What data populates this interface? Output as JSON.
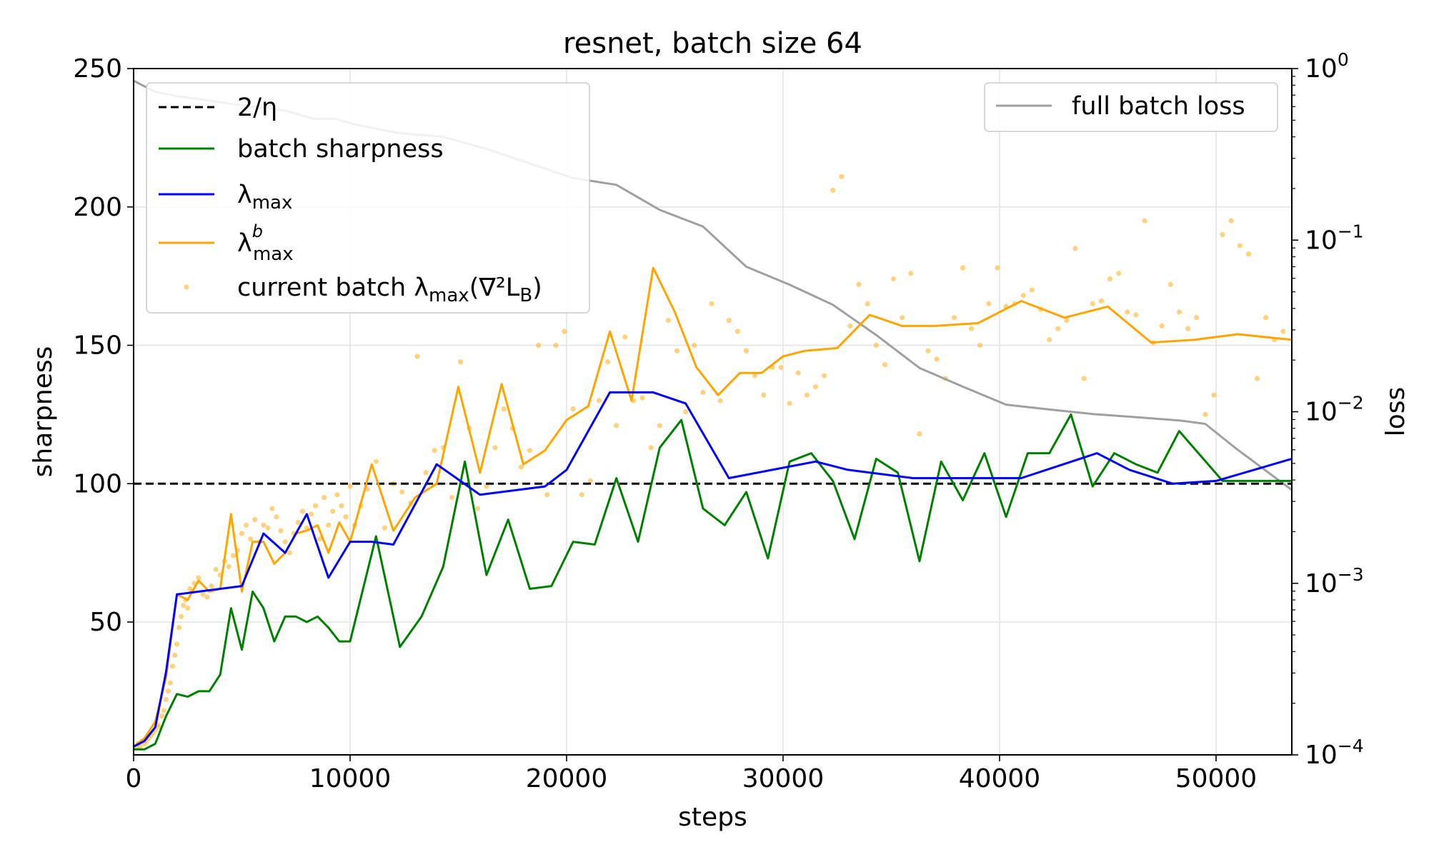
{
  "chart_data": {
    "type": "line",
    "title": "resnet, batch size 64",
    "xlabel": "steps",
    "ylabel": "sharpness",
    "ylabel_right": "loss",
    "xlim": [
      0,
      53500
    ],
    "ylim": [
      2,
      250
    ],
    "ylim_right_log": [
      0.0001,
      1
    ],
    "grid": true,
    "x_ticks": [
      0,
      10000,
      20000,
      30000,
      40000,
      50000
    ],
    "x_tick_labels": [
      "0",
      "10000",
      "20000",
      "30000",
      "40000",
      "50000"
    ],
    "y_ticks": [
      50,
      100,
      150,
      200,
      250
    ],
    "y_tick_labels": [
      "50",
      "100",
      "150",
      "200",
      "250"
    ],
    "y_right_ticks": [
      0.0001,
      0.001,
      0.01,
      0.1,
      1
    ],
    "y_right_tick_labels": [
      {
        "base": "10",
        "exp": "−4"
      },
      {
        "base": "10",
        "exp": "−3"
      },
      {
        "base": "10",
        "exp": "−2"
      },
      {
        "base": "10",
        "exp": "−1"
      },
      {
        "base": "10",
        "exp": "0"
      }
    ],
    "legend_left": {
      "position": "upper-left",
      "entries": [
        {
          "key": "two_over_eta",
          "main": "2/η",
          "sub": "",
          "sup": "",
          "after": ""
        },
        {
          "key": "batch_sharpness",
          "main": "batch sharpness",
          "sub": "",
          "sup": "",
          "after": ""
        },
        {
          "key": "lambda_max",
          "main": "λ",
          "sub": "max",
          "sup": "",
          "after": ""
        },
        {
          "key": "lambda_max_b",
          "main": "λ",
          "sub": "max",
          "sup": "b",
          "after": ""
        },
        {
          "key": "current_batch",
          "main": "current batch λ",
          "sub": "max",
          "sup": "",
          "after": "(∇²L",
          "after_sub": "B",
          "after_end": ")"
        }
      ]
    },
    "legend_right": {
      "position": "upper-right",
      "entries": [
        {
          "key": "full_batch_loss",
          "label": "full batch loss"
        }
      ]
    },
    "series": [
      {
        "name": "2/η",
        "key": "two_over_eta",
        "color": "#000000",
        "style": "dashed",
        "axis": "left",
        "x": [
          0,
          53500
        ],
        "y": [
          100,
          100
        ]
      },
      {
        "name": "batch sharpness",
        "key": "batch_sharpness",
        "color": "#008000",
        "style": "solid",
        "axis": "left",
        "x": [
          0,
          500,
          1000,
          1500,
          2000,
          2500,
          3000,
          3500,
          4000,
          4500,
          5000,
          5500,
          6000,
          6500,
          7000,
          7500,
          8000,
          8500,
          9000,
          9500,
          10000,
          11200,
          12300,
          13300,
          14300,
          15300,
          16300,
          17300,
          18300,
          19300,
          20300,
          21300,
          22300,
          23300,
          24300,
          25300,
          26300,
          27300,
          28300,
          29300,
          30300,
          31300,
          32300,
          33300,
          34300,
          35300,
          36300,
          37300,
          38300,
          39300,
          40300,
          41300,
          42300,
          43300,
          44300,
          45300,
          46300,
          47300,
          48300,
          49300,
          50300,
          51300,
          52300,
          53500
        ],
        "y": [
          4,
          4,
          6,
          16,
          24,
          23,
          25,
          25,
          31,
          55,
          40,
          61,
          55,
          43,
          52,
          52,
          50,
          52,
          48,
          43,
          43,
          81,
          41,
          52,
          70,
          108,
          67,
          87,
          62,
          63,
          79,
          78,
          102,
          79,
          113,
          123,
          91,
          85,
          97,
          73,
          108,
          111,
          101,
          80,
          109,
          104,
          72,
          108,
          94,
          111,
          88,
          111,
          111,
          125,
          99,
          111,
          107,
          104,
          119,
          110,
          101,
          101,
          101,
          101
        ]
      },
      {
        "name": "λmax",
        "key": "lambda_max",
        "color": "#0000ff",
        "style": "solid",
        "axis": "left",
        "x": [
          0,
          500,
          1000,
          1500,
          2000,
          3000,
          4000,
          5000,
          6000,
          7000,
          8000,
          9000,
          10000,
          11000,
          12000,
          14000,
          16000,
          18000,
          19000,
          20000,
          22000,
          24000,
          25500,
          27500,
          29500,
          31500,
          33000,
          36000,
          38500,
          41000,
          44500,
          46000,
          48000,
          50000,
          53500
        ],
        "y": [
          5,
          7,
          12,
          32,
          60,
          61,
          62,
          63,
          82,
          75,
          89,
          66,
          79,
          79,
          78,
          107,
          96,
          98,
          99,
          105,
          133,
          133,
          129,
          102,
          105,
          108,
          105,
          102,
          102,
          102,
          111,
          105,
          100,
          101,
          109
        ]
      },
      {
        "name": "λmax^b",
        "key": "lambda_max_b",
        "color": "#ffa500",
        "style": "solid",
        "axis": "left",
        "x": [
          0,
          500,
          1000,
          1500,
          2000,
          2500,
          3000,
          3500,
          4000,
          4500,
          5000,
          5500,
          6000,
          6500,
          7000,
          7500,
          8000,
          8500,
          9000,
          9500,
          10000,
          11000,
          12000,
          13000,
          14000,
          15000,
          16000,
          17000,
          18000,
          19000,
          20000,
          21000,
          22000,
          23000,
          24000,
          25000,
          26000,
          27000,
          28000,
          29000,
          30000,
          31000,
          32500,
          34000,
          35500,
          37000,
          39000,
          41000,
          43000,
          45000,
          47000,
          49000,
          51000,
          53500
        ],
        "y": [
          5,
          8,
          14,
          30,
          60,
          58,
          65,
          61,
          62,
          89,
          61,
          79,
          79,
          71,
          75,
          82,
          83,
          85,
          75,
          86,
          79,
          107,
          83,
          95,
          100,
          135,
          104,
          136,
          107,
          112,
          123,
          128,
          155,
          130,
          178,
          162,
          142,
          132,
          140,
          140,
          146,
          148,
          149,
          161,
          157,
          157,
          158,
          166,
          160,
          164,
          151,
          152,
          154,
          152
        ]
      },
      {
        "name": "current batch λmax(∇²L_B)",
        "key": "current_batch",
        "color": "#ffa500",
        "style": "scatter",
        "axis": "left",
        "x": [
          100,
          200,
          300,
          400,
          500,
          600,
          700,
          800,
          900,
          1000,
          1100,
          1200,
          1300,
          1400,
          1500,
          1600,
          1700,
          1800,
          1900,
          2000,
          2100,
          2200,
          2300,
          2400,
          2500,
          2600,
          2700,
          2800,
          3000,
          3200,
          3400,
          3600,
          3800,
          4000,
          4200,
          4400,
          4600,
          4800,
          5000,
          5200,
          5400,
          5600,
          5800,
          6000,
          6200,
          6400,
          6600,
          6800,
          7000,
          7200,
          7400,
          7600,
          7800,
          8000,
          8200,
          8400,
          8600,
          8800,
          9000,
          9200,
          9400,
          9600,
          9800,
          10000,
          10200,
          10500,
          10800,
          11200,
          11600,
          12000,
          12400,
          12800,
          13100,
          13500,
          13900,
          14300,
          14700,
          15100,
          15500,
          15900,
          16300,
          16700,
          17100,
          17500,
          17900,
          18300,
          18700,
          19100,
          19500,
          19900,
          20300,
          20700,
          21100,
          21500,
          21900,
          22300,
          22700,
          23100,
          23500,
          23900,
          24300,
          24700,
          25100,
          25500,
          25900,
          26300,
          26700,
          27100,
          27500,
          27900,
          28300,
          28700,
          29100,
          29500,
          29900,
          30300,
          30700,
          31100,
          31500,
          31900,
          32300,
          32700,
          33100,
          33500,
          33900,
          34300,
          34700,
          35100,
          35500,
          35900,
          36300,
          36700,
          37100,
          37500,
          37900,
          38300,
          38700,
          39100,
          39500,
          39900,
          40300,
          40700,
          41100,
          41500,
          41900,
          42300,
          42700,
          43100,
          43500,
          43900,
          44300,
          44700,
          45100,
          45500,
          45900,
          46300,
          46700,
          47100,
          47500,
          47900,
          48300,
          48700,
          49100,
          49500,
          49900,
          50300,
          50700,
          51100,
          51500,
          51900,
          52300,
          52700,
          53100
        ],
        "y": [
          5,
          6,
          5,
          7,
          6,
          7,
          8,
          9,
          10,
          11,
          13,
          12,
          16,
          18,
          22,
          25,
          28,
          34,
          38,
          42,
          48,
          52,
          56,
          58,
          55,
          62,
          61,
          64,
          66,
          60,
          59,
          63,
          69,
          67,
          72,
          70,
          74,
          76,
          82,
          85,
          80,
          87,
          79,
          85,
          84,
          91,
          88,
          83,
          79,
          75,
          82,
          86,
          90,
          84,
          89,
          92,
          80,
          95,
          85,
          90,
          96,
          92,
          88,
          99,
          85,
          92,
          98,
          108,
          84,
          100,
          97,
          93,
          146,
          104,
          112,
          113,
          95,
          144,
          120,
          91,
          99,
          113,
          127,
          120,
          106,
          112,
          150,
          96,
          150,
          155,
          127,
          96,
          101,
          130,
          144,
          121,
          153,
          130,
          131,
          113,
          121,
          159,
          148,
          126,
          150,
          133,
          165,
          130,
          159,
          155,
          148,
          139,
          132,
          142,
          142,
          129,
          140,
          132,
          135,
          139,
          206,
          211,
          157,
          172,
          165,
          150,
          143,
          174,
          160,
          176,
          118,
          148,
          145,
          138,
          160,
          178,
          156,
          150,
          165,
          178,
          164,
          165,
          168,
          170,
          163,
          152,
          156,
          159,
          185,
          138,
          165,
          166,
          174,
          176,
          162,
          161,
          195,
          151,
          157,
          172,
          162,
          156,
          160,
          125,
          132,
          190,
          195,
          186,
          183,
          138,
          160,
          152,
          155
        ]
      },
      {
        "name": "full batch loss",
        "key": "full_batch_loss",
        "color": "#a0a0a0",
        "style": "solid",
        "axis": "right",
        "x": [
          0,
          1000,
          2000,
          3500,
          5000,
          7000,
          8300,
          9300,
          10300,
          12300,
          14300,
          16300,
          18300,
          20300,
          22300,
          24300,
          26300,
          28300,
          30300,
          32300,
          34300,
          36300,
          38300,
          40300,
          42300,
          44300,
          46300,
          48300,
          49500,
          51000,
          53500
        ],
        "y": [
          0.85,
          0.73,
          0.69,
          0.65,
          0.61,
          0.57,
          0.51,
          0.51,
          0.47,
          0.42,
          0.4,
          0.34,
          0.28,
          0.23,
          0.21,
          0.15,
          0.12,
          0.07,
          0.055,
          0.042,
          0.028,
          0.018,
          0.014,
          0.011,
          0.0103,
          0.0097,
          0.0093,
          0.0089,
          0.0085,
          0.006,
          0.0035
        ]
      }
    ]
  }
}
